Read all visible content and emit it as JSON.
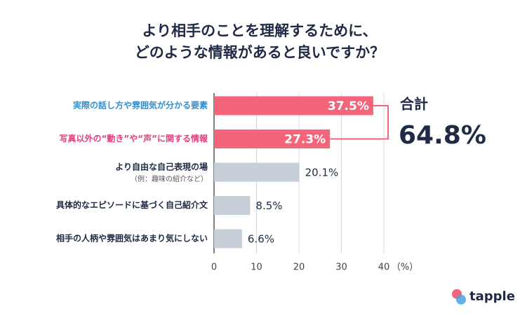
{
  "chart_data": {
    "type": "hbar",
    "title": [
      "より相手のことを理解するために、",
      "どのような情報があると良いですか？"
    ],
    "categories": [
      "実際の話し方や雰囲気が分かる要素",
      "写真以外の“動き”や“声”に関する情報",
      "より自由な自己表現の場",
      "具体的なエピソードに基づく自己紹介文",
      "相手の人柄や雰囲気はあまり気にしない"
    ],
    "category_notes": [
      null,
      null,
      "（例：趣味の紹介など）",
      null,
      null
    ],
    "category_colors": [
      "#2f8fd0",
      "#e0407f",
      "#1f2a44",
      "#1f2a44",
      "#1f2a44"
    ],
    "values": [
      37.5,
      27.3,
      20.1,
      8.5,
      6.6
    ],
    "value_labels": [
      "37.5%",
      "27.3%",
      "20.1%",
      "8.5%",
      "6.6%"
    ],
    "colors": [
      "#f4657a",
      "#f4657a",
      "#c6ced8",
      "#c6ced8",
      "#c6ced8"
    ],
    "xlim": [
      0,
      40
    ],
    "xticks": [
      0,
      10,
      20,
      30,
      40
    ],
    "x_unit": "（%）",
    "grid": true,
    "total_label": "合計",
    "total": 64.8,
    "total_value_label": "64.8%",
    "bracket_color": "#f4657a",
    "logo": "tapple"
  }
}
